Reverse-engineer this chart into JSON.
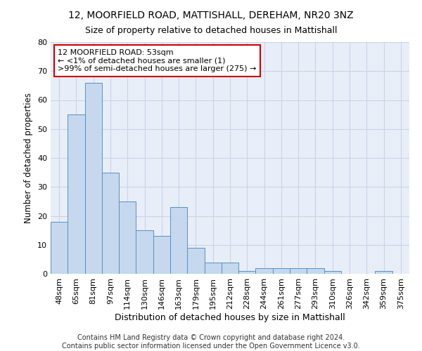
{
  "title": "12, MOORFIELD ROAD, MATTISHALL, DEREHAM, NR20 3NZ",
  "subtitle": "Size of property relative to detached houses in Mattishall",
  "xlabel": "Distribution of detached houses by size in Mattishall",
  "ylabel": "Number of detached properties",
  "categories": [
    "48sqm",
    "65sqm",
    "81sqm",
    "97sqm",
    "114sqm",
    "130sqm",
    "146sqm",
    "163sqm",
    "179sqm",
    "195sqm",
    "212sqm",
    "228sqm",
    "244sqm",
    "261sqm",
    "277sqm",
    "293sqm",
    "310sqm",
    "326sqm",
    "342sqm",
    "359sqm",
    "375sqm"
  ],
  "values": [
    18,
    55,
    66,
    35,
    25,
    15,
    13,
    23,
    9,
    4,
    4,
    1,
    2,
    2,
    2,
    2,
    1,
    0,
    0,
    1,
    0
  ],
  "bar_color": "#c5d8ed",
  "bar_edge_color": "#5a8fc2",
  "annotation_box_text": [
    "12 MOORFIELD ROAD: 53sqm",
    "← <1% of detached houses are smaller (1)",
    ">99% of semi-detached houses are larger (275) →"
  ],
  "annotation_box_color": "#ffffff",
  "annotation_box_edge_color": "#cc0000",
  "ylim": [
    0,
    80
  ],
  "yticks": [
    0,
    10,
    20,
    30,
    40,
    50,
    60,
    70,
    80
  ],
  "grid_color": "#c8d4e8",
  "background_color": "#e8eef8",
  "footer_line1": "Contains HM Land Registry data © Crown copyright and database right 2024.",
  "footer_line2": "Contains public sector information licensed under the Open Government Licence v3.0.",
  "title_fontsize": 10,
  "subtitle_fontsize": 9,
  "xlabel_fontsize": 9,
  "ylabel_fontsize": 8.5,
  "tick_fontsize": 8,
  "annotation_fontsize": 8,
  "footer_fontsize": 7
}
